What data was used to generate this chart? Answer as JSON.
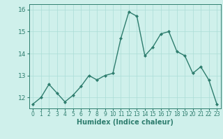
{
  "x": [
    0,
    1,
    2,
    3,
    4,
    5,
    6,
    7,
    8,
    9,
    10,
    11,
    12,
    13,
    14,
    15,
    16,
    17,
    18,
    19,
    20,
    21,
    22,
    23
  ],
  "y": [
    11.7,
    12.0,
    12.6,
    12.2,
    11.8,
    12.1,
    12.5,
    13.0,
    12.8,
    13.0,
    13.1,
    14.7,
    15.9,
    15.7,
    13.9,
    14.3,
    14.9,
    15.0,
    14.1,
    13.9,
    13.1,
    13.4,
    12.8,
    11.7
  ],
  "xlabel": "Humidex (Indice chaleur)",
  "xlim": [
    -0.5,
    23.5
  ],
  "ylim": [
    11.5,
    16.25
  ],
  "yticks": [
    12,
    13,
    14,
    15,
    16
  ],
  "xticks": [
    0,
    1,
    2,
    3,
    4,
    5,
    6,
    7,
    8,
    9,
    10,
    11,
    12,
    13,
    14,
    15,
    16,
    17,
    18,
    19,
    20,
    21,
    22,
    23
  ],
  "line_color": "#2e7d6e",
  "marker_color": "#2e7d6e",
  "bg_color": "#cff0eb",
  "grid_color": "#aaddd6",
  "axis_color": "#2e7d6e",
  "tick_label_color": "#2e7d6e",
  "xlabel_color": "#2e7d6e",
  "marker": "D",
  "markersize": 2.0,
  "linewidth": 1.0
}
